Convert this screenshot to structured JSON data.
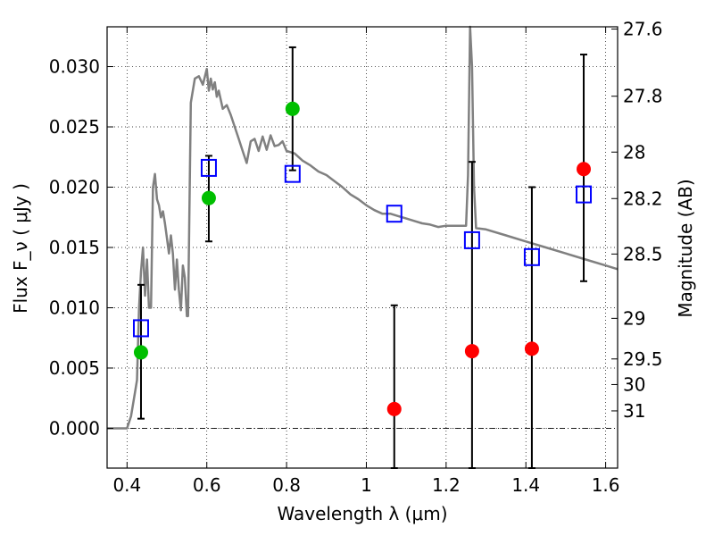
{
  "chart_data": {
    "type": "scatter",
    "title": "",
    "xlabel": "Wavelength  λ (μm)",
    "ylabel": "Flux  F_ν  ( μJy )",
    "ylabel_right": "Magnitude (AB)",
    "xlim": [
      0.35,
      1.63
    ],
    "ylim": [
      -0.0033,
      0.0333
    ],
    "grid": true,
    "x_ticks": [
      {
        "value": 0.4,
        "label": "0.4"
      },
      {
        "value": 0.6,
        "label": "0.6"
      },
      {
        "value": 0.8,
        "label": "0.8"
      },
      {
        "value": 1.0,
        "label": "1"
      },
      {
        "value": 1.2,
        "label": "1.2"
      },
      {
        "value": 1.4,
        "label": "1.4"
      },
      {
        "value": 1.6,
        "label": "1.6"
      }
    ],
    "y_ticks": [
      {
        "value": 0.0,
        "label": "0.000"
      },
      {
        "value": 0.005,
        "label": "0.005"
      },
      {
        "value": 0.01,
        "label": "0.010"
      },
      {
        "value": 0.015,
        "label": "0.015"
      },
      {
        "value": 0.02,
        "label": "0.020"
      },
      {
        "value": 0.025,
        "label": "0.025"
      },
      {
        "value": 0.03,
        "label": "0.030"
      }
    ],
    "mag_ticks": [
      {
        "mag": 27.6,
        "label": "27.6"
      },
      {
        "mag": 27.8,
        "label": "27.8"
      },
      {
        "mag": 28.0,
        "label": "28"
      },
      {
        "mag": 28.2,
        "label": "28.2"
      },
      {
        "mag": 28.5,
        "label": "28.5"
      },
      {
        "mag": 29.0,
        "label": "29"
      },
      {
        "mag": 29.5,
        "label": "29.5"
      },
      {
        "mag": 30.0,
        "label": "30"
      },
      {
        "mag": 31.0,
        "label": "31"
      }
    ],
    "template_spectrum": {
      "color": "#808080",
      "x": [
        0.35,
        0.4,
        0.41,
        0.42,
        0.425,
        0.43,
        0.435,
        0.44,
        0.445,
        0.45,
        0.455,
        0.46,
        0.465,
        0.47,
        0.475,
        0.48,
        0.485,
        0.49,
        0.495,
        0.5,
        0.505,
        0.51,
        0.515,
        0.52,
        0.525,
        0.53,
        0.535,
        0.54,
        0.545,
        0.55,
        0.553,
        0.56,
        0.57,
        0.58,
        0.59,
        0.6,
        0.605,
        0.61,
        0.615,
        0.62,
        0.625,
        0.63,
        0.64,
        0.65,
        0.66,
        0.67,
        0.68,
        0.69,
        0.7,
        0.71,
        0.72,
        0.73,
        0.74,
        0.75,
        0.76,
        0.77,
        0.78,
        0.79,
        0.8,
        0.82,
        0.84,
        0.86,
        0.88,
        0.9,
        0.92,
        0.94,
        0.96,
        0.98,
        1.0,
        1.02,
        1.04,
        1.06,
        1.08,
        1.1,
        1.12,
        1.14,
        1.16,
        1.18,
        1.2,
        1.22,
        1.24,
        1.25,
        1.255,
        1.26,
        1.265,
        1.27,
        1.275,
        1.3,
        1.35,
        1.4,
        1.45,
        1.5,
        1.55,
        1.6,
        1.63
      ],
      "y": [
        0.0,
        0.0,
        0.001,
        0.003,
        0.004,
        0.01,
        0.013,
        0.015,
        0.011,
        0.014,
        0.01,
        0.01,
        0.02,
        0.0211,
        0.019,
        0.0185,
        0.0175,
        0.018,
        0.017,
        0.0158,
        0.0145,
        0.016,
        0.0145,
        0.0115,
        0.014,
        0.0115,
        0.0098,
        0.0135,
        0.0125,
        0.0093,
        0.0093,
        0.027,
        0.029,
        0.0292,
        0.0285,
        0.0298,
        0.028,
        0.029,
        0.0281,
        0.0287,
        0.0275,
        0.028,
        0.0265,
        0.0268,
        0.026,
        0.025,
        0.024,
        0.023,
        0.022,
        0.0238,
        0.024,
        0.023,
        0.0242,
        0.0231,
        0.0243,
        0.0234,
        0.0235,
        0.0238,
        0.023,
        0.0228,
        0.0222,
        0.0218,
        0.0213,
        0.021,
        0.0205,
        0.02,
        0.0194,
        0.019,
        0.0185,
        0.0181,
        0.0178,
        0.0178,
        0.0176,
        0.0174,
        0.0172,
        0.017,
        0.0169,
        0.0167,
        0.0168,
        0.0168,
        0.0168,
        0.0168,
        0.021,
        0.0333,
        0.03,
        0.02,
        0.0166,
        0.0165,
        0.016,
        0.0155,
        0.015,
        0.0145,
        0.014,
        0.0135,
        0.0132
      ]
    },
    "series": [
      {
        "marker": "open-square",
        "color": "#0000ff",
        "points": [
          {
            "x": 0.435,
            "y": 0.0083
          },
          {
            "x": 0.605,
            "y": 0.0216
          },
          {
            "x": 0.815,
            "y": 0.0211
          },
          {
            "x": 1.07,
            "y": 0.0178
          },
          {
            "x": 1.265,
            "y": 0.0156
          },
          {
            "x": 1.415,
            "y": 0.0142
          },
          {
            "x": 1.545,
            "y": 0.0194
          }
        ]
      },
      {
        "marker": "filled-circle",
        "color": "#00bf00",
        "points": [
          {
            "x": 0.435,
            "y": 0.0063,
            "err_low": 0.0008,
            "err_high": 0.0119
          },
          {
            "x": 0.605,
            "y": 0.0191,
            "err_low": 0.0155,
            "err_high": 0.0226
          },
          {
            "x": 0.815,
            "y": 0.0265,
            "err_low": 0.0214,
            "err_high": 0.0316
          }
        ]
      },
      {
        "marker": "filled-circle",
        "color": "#ff0000",
        "points": [
          {
            "x": 1.07,
            "y": 0.0016,
            "err_low": -0.0033,
            "err_high": 0.0102
          },
          {
            "x": 1.265,
            "y": 0.0064,
            "err_low": -0.0033,
            "err_high": 0.0221
          },
          {
            "x": 1.415,
            "y": 0.0066,
            "err_low": -0.0033,
            "err_high": 0.02
          },
          {
            "x": 1.545,
            "y": 0.0215,
            "err_low": 0.0122,
            "err_high": 0.031
          }
        ]
      }
    ]
  }
}
